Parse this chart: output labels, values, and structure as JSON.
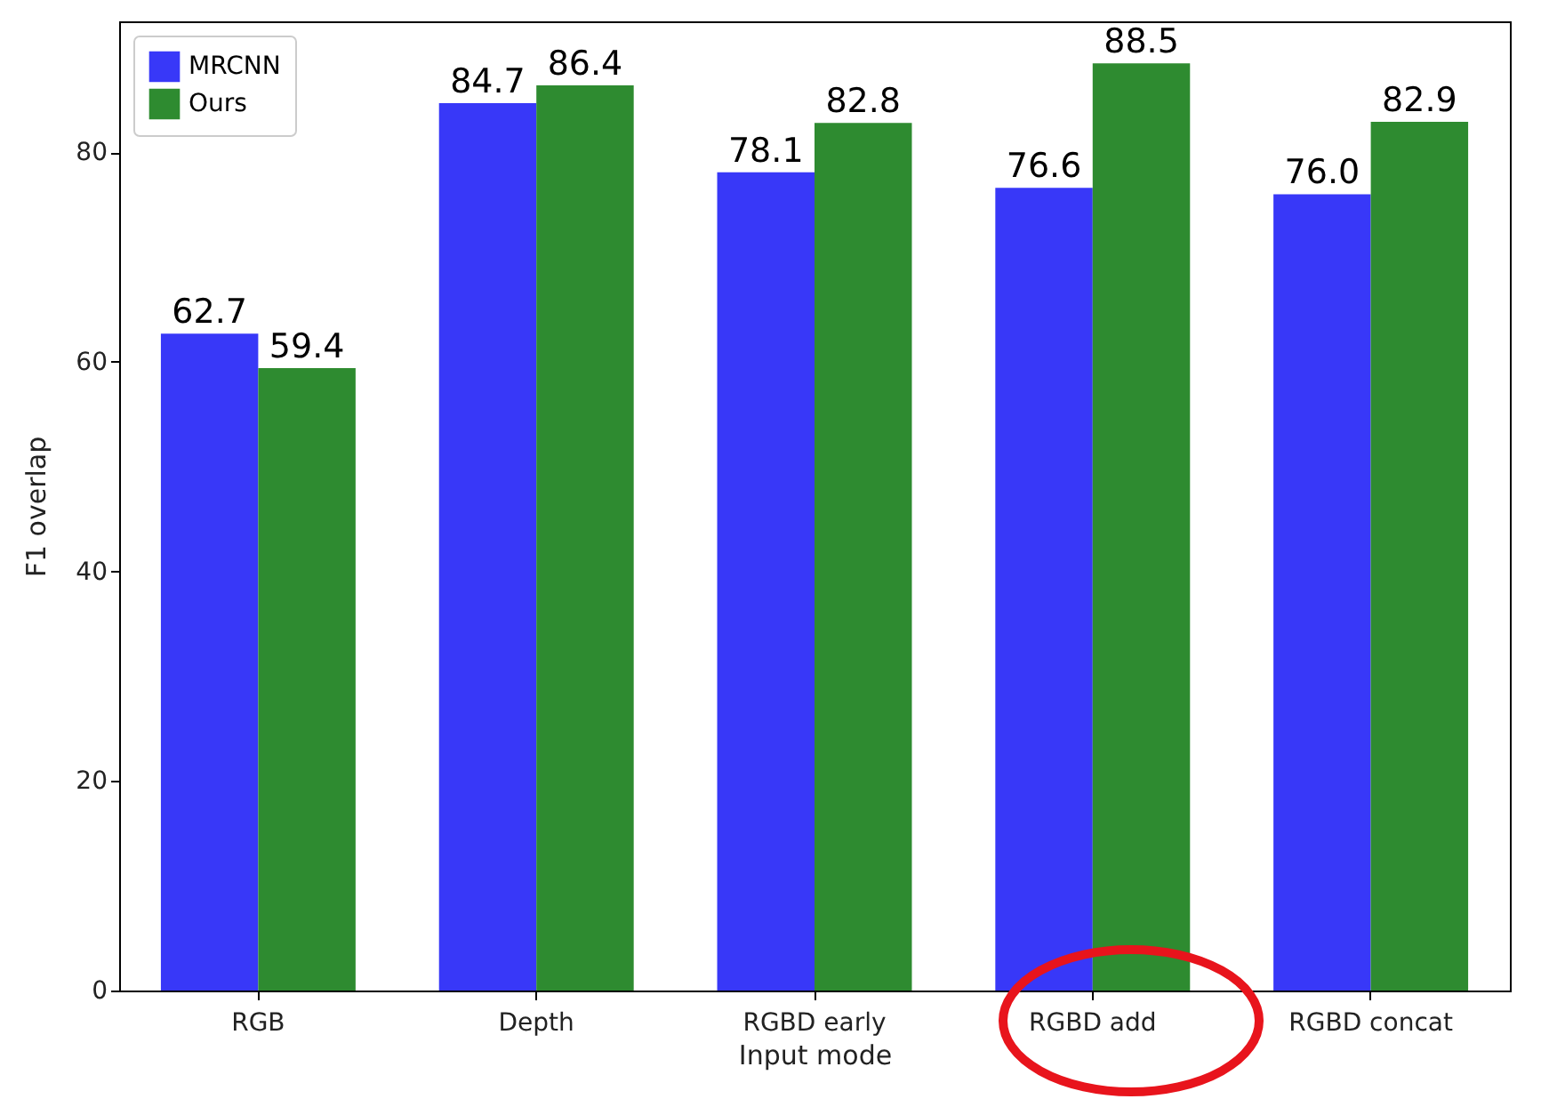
{
  "chart_data": {
    "type": "bar",
    "xlabel": "Input mode",
    "ylabel": "F1 overlap",
    "categories": [
      "RGB",
      "Depth",
      "RGBD early",
      "RGBD add",
      "RGBD concat"
    ],
    "series": [
      {
        "name": "MRCNN",
        "color": "#3838f8",
        "values": [
          62.7,
          84.7,
          78.1,
          76.6,
          76.0
        ],
        "value_labels": [
          "62.7",
          "84.7",
          "78.1",
          "76.6",
          "76.0"
        ]
      },
      {
        "name": "Ours",
        "color": "#2e8b30",
        "values": [
          59.4,
          86.4,
          82.8,
          88.5,
          82.9
        ],
        "value_labels": [
          "59.4",
          "86.4",
          "82.8",
          "88.5",
          "82.9"
        ]
      }
    ],
    "ylim": [
      0,
      92.5
    ],
    "yticks": [
      0,
      20,
      40,
      60,
      80
    ],
    "legend": "top left",
    "grid": false
  }
}
